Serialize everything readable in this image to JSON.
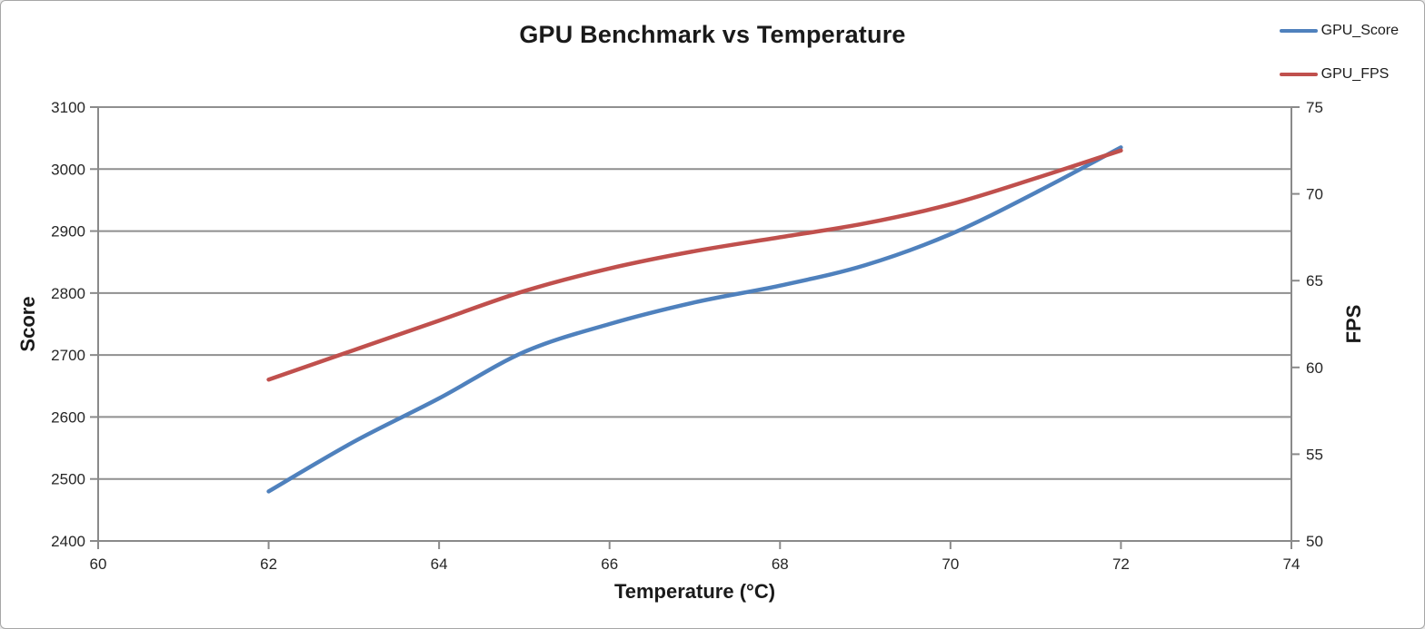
{
  "chart_data": {
    "type": "line",
    "title": "GPU Benchmark vs Temperature",
    "xlabel": "Temperature (°C)",
    "ylabel_left": "Score",
    "ylabel_right": "FPS",
    "x": [
      62,
      63,
      64,
      65,
      66,
      67,
      68,
      69,
      70,
      71,
      72
    ],
    "series": [
      {
        "name": "GPU_Score",
        "axis": "left",
        "color": "#4F81BD",
        "values": [
          2480,
          2560,
          2630,
          2705,
          2750,
          2785,
          2812,
          2845,
          2895,
          2962,
          3035
        ]
      },
      {
        "name": "GPU_FPS",
        "axis": "right",
        "color": "#C0504D",
        "values": [
          59.3,
          61.0,
          62.7,
          64.4,
          65.7,
          66.7,
          67.5,
          68.3,
          69.4,
          70.9,
          72.5
        ]
      }
    ],
    "x_axis": {
      "min": 60,
      "max": 74,
      "ticks": [
        60,
        62,
        64,
        66,
        68,
        70,
        72,
        74
      ]
    },
    "y_axis_left": {
      "min": 2400,
      "max": 3100,
      "ticks": [
        2400,
        2500,
        2600,
        2700,
        2800,
        2900,
        3000,
        3100
      ]
    },
    "y_axis_right": {
      "min": 50,
      "max": 75,
      "ticks": [
        50,
        55,
        60,
        65,
        70,
        75
      ]
    },
    "grid": "horizontal",
    "legend_position": "top-right",
    "smooth_lines": true
  },
  "colors": {
    "axis": "#8a8a8a",
    "gridline": "#8f8f8f",
    "tick_text": "#262626",
    "frame_border": "#a6a6a6",
    "background": "#ffffff"
  }
}
